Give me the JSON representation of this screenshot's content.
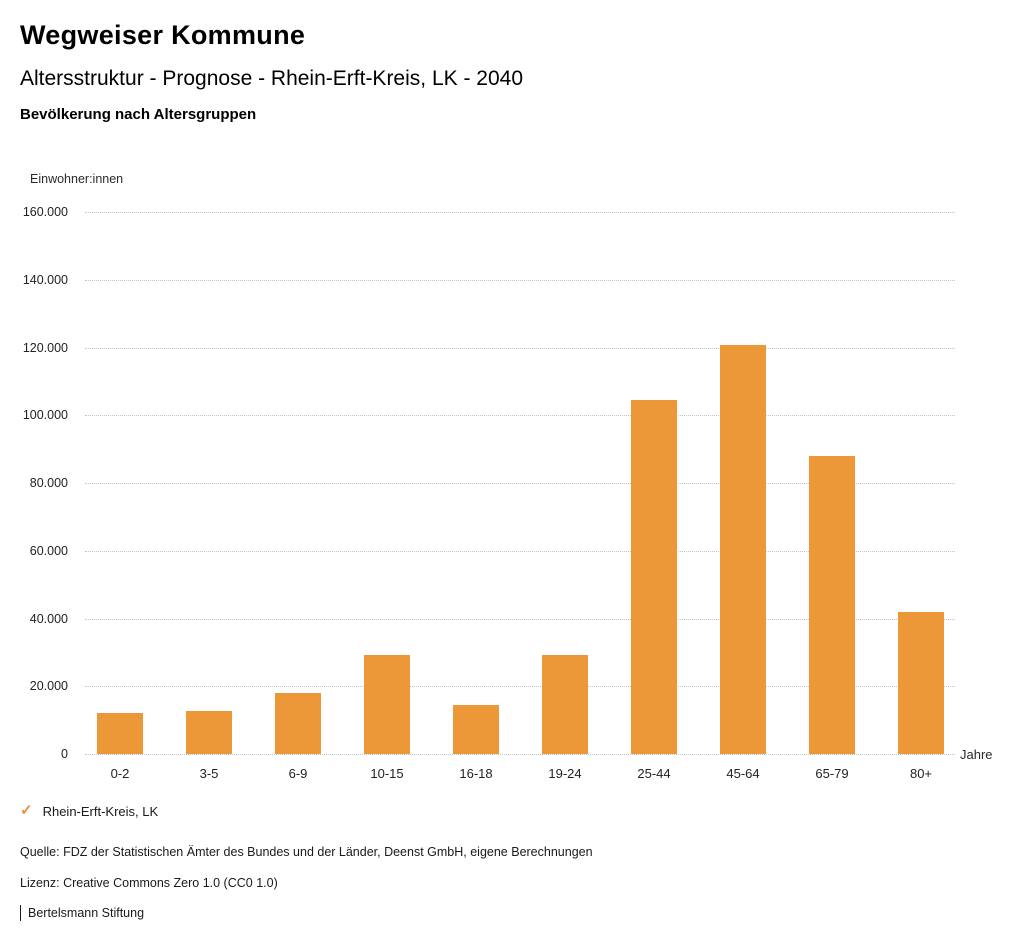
{
  "header": {
    "brand": "Wegweiser Kommune",
    "title": "Altersstruktur - Prognose - Rhein-Erft-Kreis, LK - 2040",
    "subtitle": "Bevölkerung nach Altersgruppen"
  },
  "chart_data": {
    "type": "bar",
    "title": "Bevölkerung nach Altersgruppen",
    "categories": [
      "0-2",
      "3-5",
      "6-9",
      "10-15",
      "16-18",
      "19-24",
      "25-44",
      "45-64",
      "65-79",
      "80+"
    ],
    "values": [
      12200,
      12800,
      18100,
      29100,
      14500,
      29100,
      104400,
      120600,
      88000,
      41900
    ],
    "series_name": "Rhein-Erft-Kreis, LK",
    "xlabel": "Jahre",
    "ylabel": "Einwohner:innen",
    "ylim": [
      0,
      160000
    ],
    "ytick_step": 20000,
    "ytick_labels": [
      "0",
      "20.000",
      "40.000",
      "60.000",
      "80.000",
      "100.000",
      "120.000",
      "140.000",
      "160.000"
    ],
    "grid": true,
    "legend_position": "bottom-left",
    "bar_color": "#EC9838"
  },
  "legend": {
    "check_icon": "✓",
    "label": "Rhein-Erft-Kreis, LK"
  },
  "footer": {
    "source": "Quelle: FDZ der Statistischen Ämter des Bundes und der Länder, Deenst GmbH, eigene Berechnungen",
    "license": "Lizenz: Creative Commons Zero 1.0 (CC0 1.0)",
    "attribution": "Bertelsmann Stiftung"
  },
  "colors": {
    "accent": "#EC9838",
    "legend_check": "#E8923A",
    "grid": "#C3C3C3",
    "text": "#1A1A1A"
  }
}
